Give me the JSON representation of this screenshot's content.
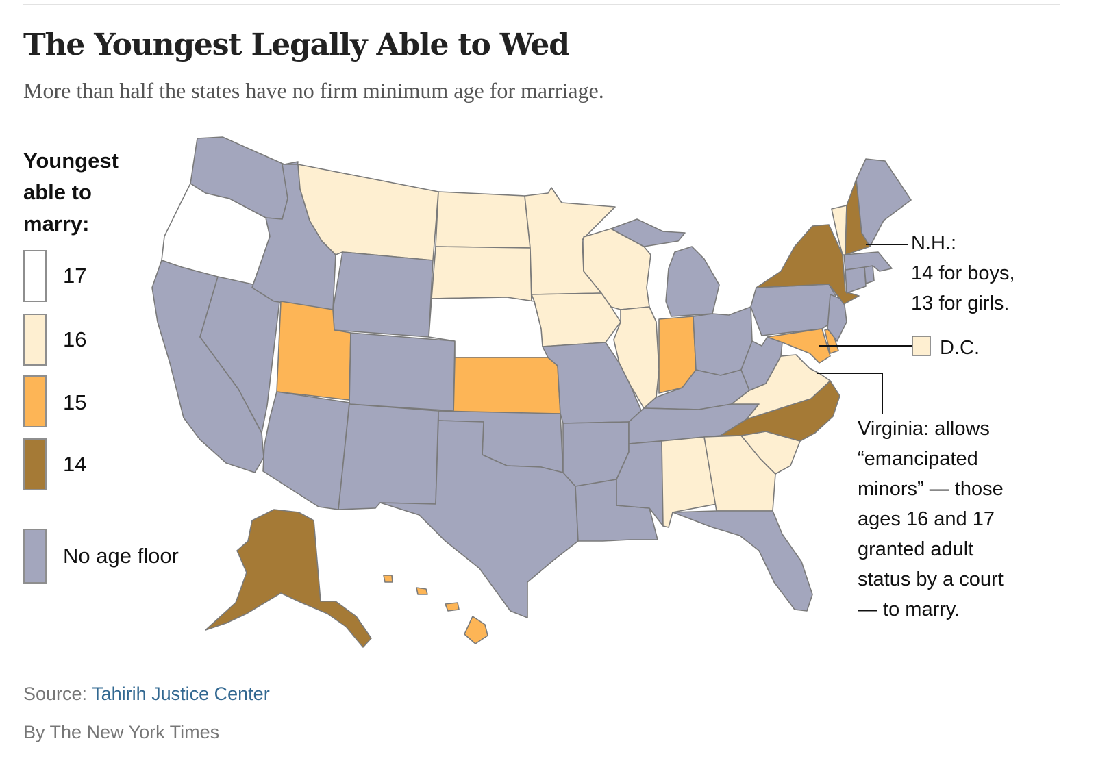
{
  "header": {
    "title": "The Youngest Legally Able to Wed",
    "subtitle": "More than half the states have no firm minimum age for marriage."
  },
  "legend": {
    "title": "Youngest able to marry:",
    "items": [
      {
        "label": "17",
        "color": "#ffffff"
      },
      {
        "label": "16",
        "color": "#feefd1"
      },
      {
        "label": "15",
        "color": "#fdb556"
      },
      {
        "label": "14",
        "color": "#a57a36"
      },
      {
        "label": "No age floor",
        "color": "#a3a6bd"
      }
    ]
  },
  "map_data": {
    "categories": {
      "17": [
        "Oregon",
        "Nebraska"
      ],
      "16": [
        "Montana",
        "North Dakota",
        "South Dakota",
        "Minnesota",
        "Wisconsin",
        "Iowa",
        "Illinois",
        "Virginia",
        "Alabama",
        "Georgia",
        "South Carolina",
        "Vermont",
        "D.C."
      ],
      "15": [
        "Utah",
        "Kansas",
        "Indiana",
        "Hawaii",
        "Maryland",
        "Delaware"
      ],
      "14": [
        "Alaska",
        "New York",
        "New Hampshire",
        "North Carolina"
      ],
      "No age floor": [
        "Washington",
        "Idaho",
        "Wyoming",
        "California",
        "Nevada",
        "Colorado",
        "Arizona",
        "New Mexico",
        "Texas",
        "Oklahoma",
        "Missouri",
        "Arkansas",
        "Louisiana",
        "Mississippi",
        "Tennessee",
        "Kentucky",
        "Ohio",
        "Michigan",
        "West Virginia",
        "Pennsylvania",
        "New Jersey",
        "Connecticut",
        "Rhode Island",
        "Massachusetts",
        "Maine",
        "Florida"
      ]
    }
  },
  "annotations": {
    "nh_lines": [
      "N.H.:",
      "14 for boys,",
      "13 for girls."
    ],
    "dc": "D.C.",
    "virginia_lines": [
      "Virginia: allows",
      "“emancipated",
      "minors” — those",
      "ages 16 and 17",
      "granted adult",
      "status by a court",
      "— to marry."
    ]
  },
  "footer": {
    "source_prefix": "Source: ",
    "source_name": "Tahirih Justice Center",
    "byline": "By The New York Times"
  }
}
